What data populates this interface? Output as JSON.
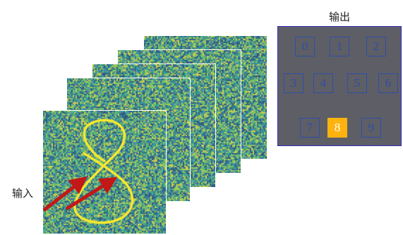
{
  "input_label": "输入",
  "output_label": "输出",
  "output_digits": [
    "0",
    "1",
    "2",
    "3",
    "4",
    "5",
    "6",
    "7",
    "8",
    "9"
  ],
  "active_digit": "8",
  "colors": {
    "panel_bg": "#5e5e66",
    "panel_border": "#2b2bb8",
    "digit_border": "#2c4fa8",
    "active_fill": "#ffb30f",
    "stroke_yellow": "#f2e631",
    "arrow_red": "#c21818"
  }
}
